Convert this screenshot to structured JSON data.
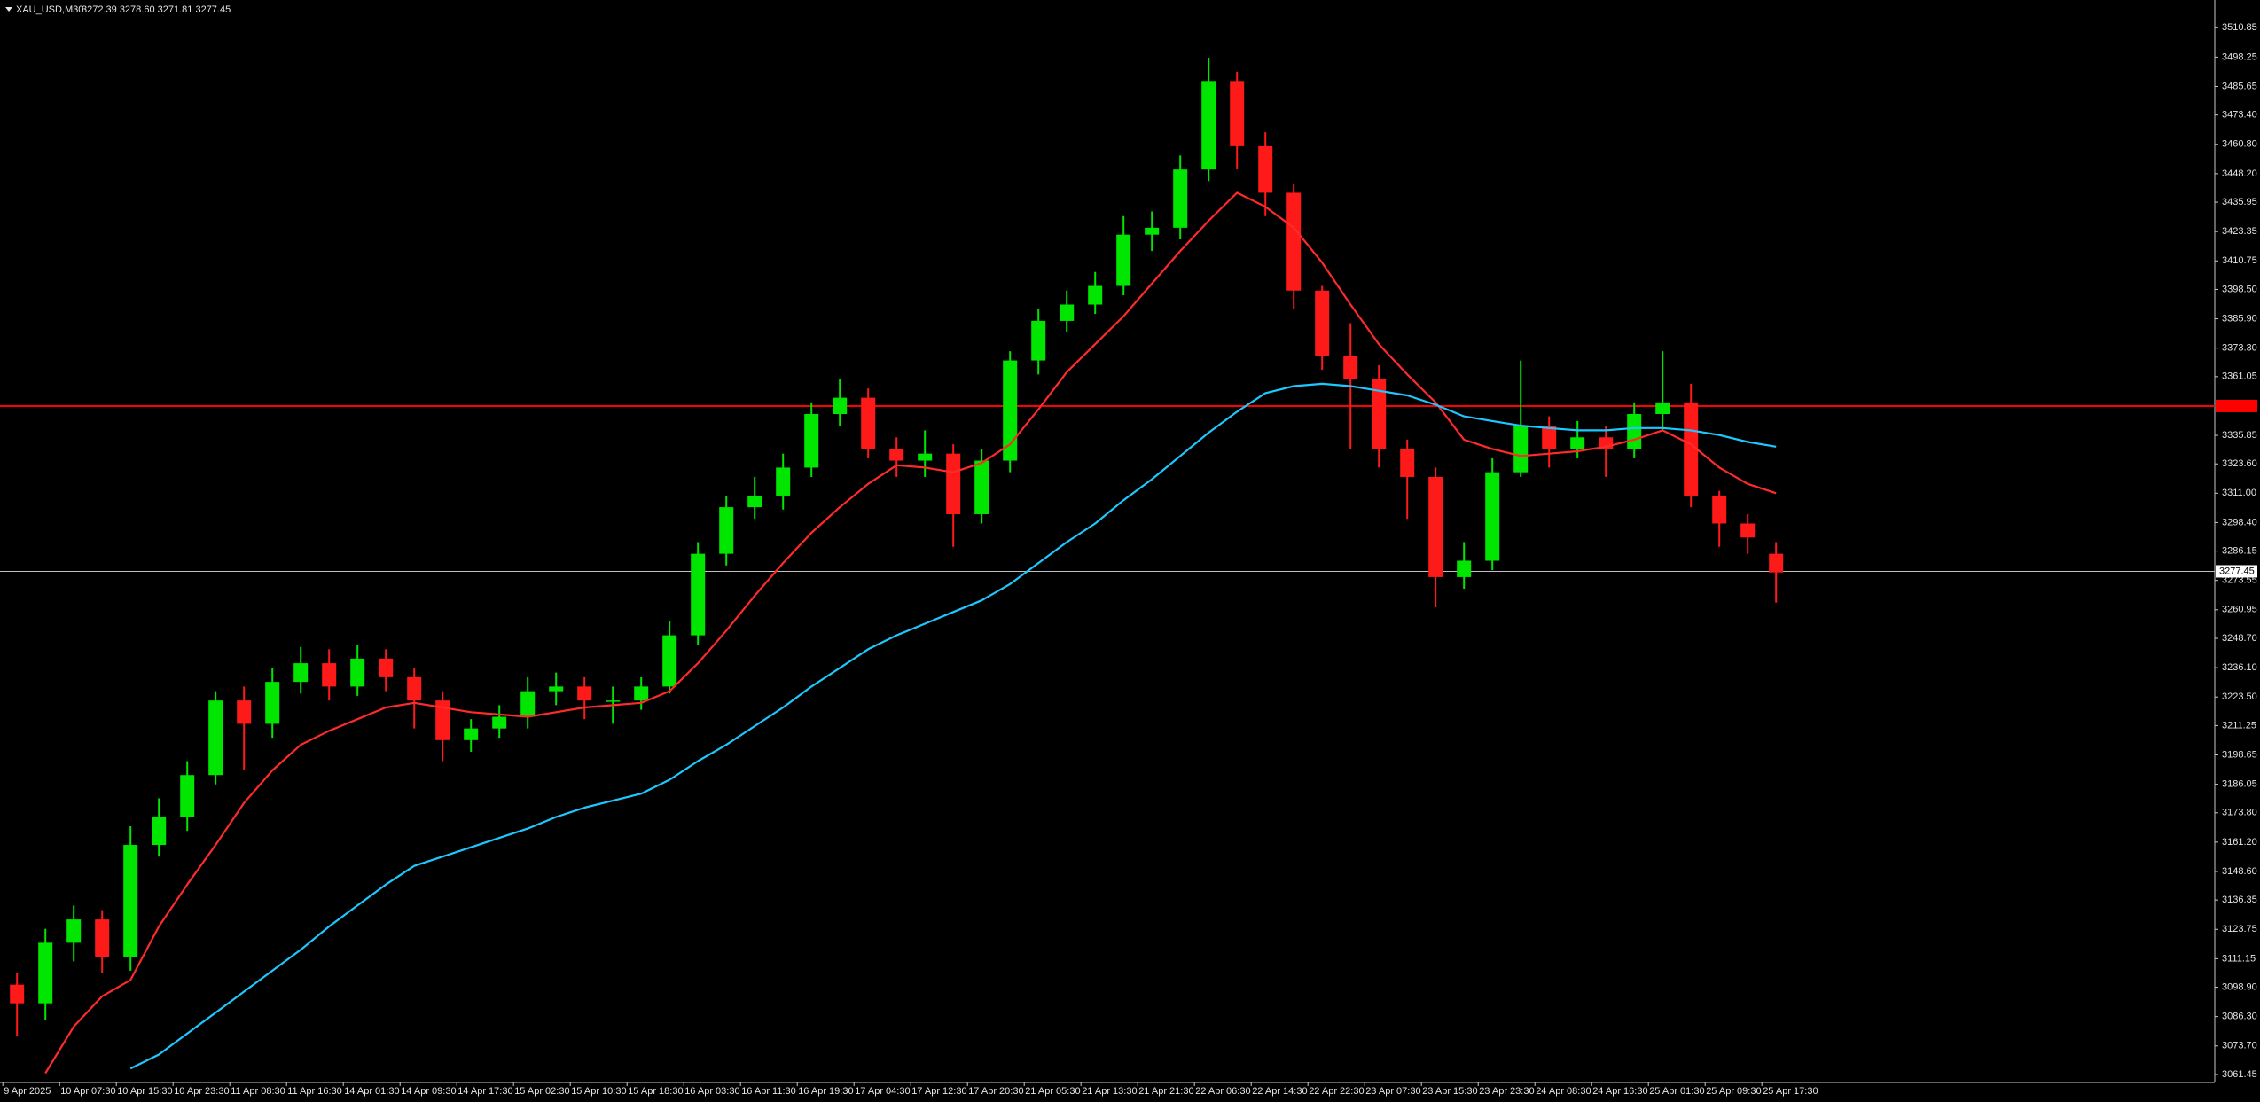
{
  "chart_data": {
    "type": "candlestick",
    "title": "XAU_USD,M30",
    "subtitle": "3272.39 3278.60 3271.81 3277.45",
    "categories": [
      "9 Apr 2025",
      null,
      "10 Apr 07:30",
      null,
      "10 Apr 15:30",
      null,
      "10 Apr 23:30",
      null,
      "11 Apr 08:30",
      null,
      "11 Apr 16:30",
      null,
      "14 Apr 01:30",
      null,
      "14 Apr 09:30",
      null,
      "14 Apr 17:30",
      null,
      "15 Apr 02:30",
      null,
      "15 Apr 10:30",
      null,
      "15 Apr 18:30",
      null,
      "16 Apr 03:30",
      null,
      "16 Apr 11:30",
      null,
      "16 Apr 19:30",
      null,
      "17 Apr 04:30",
      null,
      "17 Apr 12:30",
      null,
      "17 Apr 20:30",
      null,
      "21 Apr 05:30",
      null,
      "21 Apr 13:30",
      null,
      "21 Apr 21:30",
      null,
      "22 Apr 06:30",
      null,
      "22 Apr 14:30",
      null,
      "22 Apr 22:30",
      null,
      "23 Apr 07:30",
      null,
      "23 Apr 15:30",
      null,
      "23 Apr 23:30",
      null,
      "24 Apr 08:30",
      null,
      "24 Apr 16:30",
      null,
      "25 Apr 01:30",
      null,
      "25 Apr 09:30",
      null,
      "25 Apr 17:30"
    ],
    "open": [
      3100,
      3092,
      3118,
      3128,
      3112,
      3160,
      3172,
      3190,
      3222,
      3212,
      3230,
      3238,
      3228,
      3240,
      3232,
      3222,
      3205,
      3210,
      3215,
      3226,
      3228,
      3222,
      3222,
      3228,
      3250,
      3285,
      3305,
      3310,
      3322,
      3345,
      3352,
      3330,
      3325,
      3328,
      3302,
      3325,
      3368,
      3385,
      3392,
      3400,
      3422,
      3425,
      3450,
      3488,
      3460,
      3440,
      3398,
      3370,
      3360,
      3330,
      3318,
      3275,
      3282,
      3320,
      3340,
      3330,
      3335,
      3330,
      3345,
      3350,
      3310,
      3298,
      3285
    ],
    "high": [
      3105,
      3124,
      3134,
      3132,
      3168,
      3180,
      3196,
      3226,
      3228,
      3236,
      3245,
      3244,
      3246,
      3244,
      3236,
      3226,
      3214,
      3220,
      3232,
      3234,
      3232,
      3228,
      3232,
      3256,
      3290,
      3310,
      3318,
      3328,
      3350,
      3360,
      3356,
      3335,
      3338,
      3332,
      3330,
      3372,
      3390,
      3398,
      3406,
      3430,
      3432,
      3456,
      3498,
      3492,
      3466,
      3444,
      3400,
      3384,
      3366,
      3334,
      3322,
      3290,
      3326,
      3368,
      3344,
      3342,
      3340,
      3350,
      3372,
      3358,
      3312,
      3302,
      3290
    ],
    "low": [
      3078,
      3085,
      3110,
      3105,
      3106,
      3155,
      3166,
      3186,
      3192,
      3206,
      3225,
      3222,
      3224,
      3226,
      3210,
      3196,
      3200,
      3206,
      3210,
      3220,
      3214,
      3212,
      3218,
      3225,
      3246,
      3280,
      3300,
      3304,
      3318,
      3340,
      3326,
      3318,
      3318,
      3288,
      3298,
      3320,
      3362,
      3380,
      3388,
      3396,
      3415,
      3420,
      3445,
      3450,
      3430,
      3390,
      3364,
      3330,
      3322,
      3300,
      3262,
      3270,
      3278,
      3318,
      3322,
      3326,
      3318,
      3326,
      3338,
      3305,
      3288,
      3285,
      3264
    ],
    "close": [
      3092,
      3118,
      3128,
      3112,
      3160,
      3172,
      3190,
      3222,
      3212,
      3230,
      3238,
      3228,
      3240,
      3232,
      3222,
      3205,
      3210,
      3215,
      3226,
      3228,
      3222,
      3222,
      3228,
      3250,
      3285,
      3305,
      3310,
      3322,
      3345,
      3352,
      3330,
      3325,
      3328,
      3302,
      3325,
      3368,
      3385,
      3392,
      3400,
      3422,
      3425,
      3450,
      3488,
      3460,
      3440,
      3398,
      3370,
      3360,
      3330,
      3318,
      3275,
      3282,
      3320,
      3340,
      3330,
      3335,
      3330,
      3345,
      3350,
      3310,
      3298,
      3292,
      3277
    ],
    "up_color": "#00e600",
    "down_color": "#ff1a1a",
    "series": [
      {
        "color": "#ff2a2a",
        "values": [
          null,
          3062,
          3082,
          3095,
          3102,
          3125,
          3143,
          3160,
          3178,
          3192,
          3203,
          3209,
          3214,
          3219,
          3221,
          3219,
          3217,
          3216,
          3215,
          3217,
          3219,
          3220,
          3221,
          3226,
          3238,
          3252,
          3267,
          3281,
          3294,
          3305,
          3315,
          3323,
          3322,
          3320,
          3324,
          3332,
          3347,
          3363,
          3375,
          3387,
          3401,
          3415,
          3428,
          3440,
          3434,
          3425,
          3410,
          3392,
          3375,
          3362,
          3350,
          3334,
          3330,
          3327,
          3328,
          3329,
          3331,
          3334,
          3338,
          3332,
          3322,
          3315,
          3311
        ]
      },
      {
        "color": "#1ec8ff",
        "values": [
          null,
          null,
          null,
          null,
          3064,
          3070,
          3079,
          3088,
          3097,
          3106,
          3115,
          3125,
          3134,
          3143,
          3151,
          3155,
          3159,
          3163,
          3167,
          3172,
          3176,
          3179,
          3182,
          3188,
          3196,
          3203,
          3211,
          3219,
          3228,
          3236,
          3244,
          3250,
          3255,
          3260,
          3265,
          3272,
          3281,
          3290,
          3298,
          3308,
          3317,
          3327,
          3337,
          3346,
          3354,
          3357,
          3358,
          3357,
          3355,
          3353,
          3349,
          3344,
          3342,
          3340,
          3339,
          3338,
          3338,
          3339,
          3339,
          3338,
          3336,
          3333,
          3331
        ]
      }
    ],
    "hlines": [
      {
        "value": 3348.45,
        "color": "#ff0000"
      },
      {
        "value": 3277.45,
        "color": "#c0c0c0"
      }
    ],
    "ylim": [
      3058,
      3522
    ],
    "yticks": [
      3510.85,
      3498.25,
      3485.65,
      {
        "value": 3473.4,
        "label": "3473.40"
      },
      {
        "value": 3460.8,
        "label": "3460.80"
      },
      {
        "value": 3448.2,
        "label": "3448.20"
      },
      3435.95,
      3423.35,
      3410.75,
      {
        "value": 3398.5,
        "label": "3398.50"
      },
      {
        "value": 3385.9,
        "label": "3385.90"
      },
      {
        "value": 3373.3,
        "label": "3373.30"
      },
      3361.05,
      3335.85,
      {
        "value": 3323.6,
        "label": "3323.60"
      },
      {
        "value": 3311,
        "label": "3311.00"
      },
      {
        "value": 3298.4,
        "label": "3298.40"
      },
      3286.15,
      3273.55,
      3260.95,
      {
        "value": 3248.7,
        "label": "3248.70"
      },
      {
        "value": 3236.1,
        "label": "3236.10"
      },
      {
        "value": 3223.5,
        "label": "3223.50"
      },
      3211.25,
      3198.65,
      3186.05,
      {
        "value": 3173.8,
        "label": "3173.80"
      },
      {
        "value": 3161.2,
        "label": "3161.20"
      },
      {
        "value": 3148.6,
        "label": "3148.60"
      },
      3136.35,
      3123.75,
      3111.15,
      {
        "value": 3098.9,
        "label": "3098.90"
      },
      {
        "value": 3086.3,
        "label": "3086.30"
      },
      {
        "value": 3073.7,
        "label": "3073.70"
      },
      3061.45
    ]
  }
}
